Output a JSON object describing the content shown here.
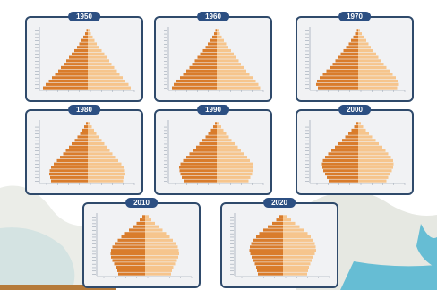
{
  "chart_data": [
    {
      "type": "population-pyramid",
      "year": "1950",
      "male_color": "#d97c2b",
      "female_color": "#f6c58d",
      "series": [
        {
          "name": "",
          "side": "left",
          "values": [
            10.0,
            9.4,
            8.7,
            8.0,
            7.3,
            6.6,
            6.0,
            5.4,
            4.8,
            4.2,
            3.6,
            3.0,
            2.4,
            1.9,
            1.4,
            1.0,
            0.6,
            0.3
          ]
        },
        {
          "name": "",
          "side": "right",
          "values": [
            9.6,
            9.1,
            8.4,
            7.8,
            7.1,
            6.5,
            5.9,
            5.3,
            4.8,
            4.2,
            3.7,
            3.1,
            2.5,
            2.0,
            1.5,
            1.1,
            0.7,
            0.4
          ]
        }
      ]
    },
    {
      "type": "population-pyramid",
      "year": "1960",
      "male_color": "#d97c2b",
      "female_color": "#f6c58d",
      "series": [
        {
          "name": "",
          "side": "left",
          "values": [
            10.0,
            9.6,
            9.0,
            8.2,
            7.5,
            6.8,
            6.1,
            5.5,
            4.9,
            4.3,
            3.7,
            3.1,
            2.5,
            2.0,
            1.5,
            1.0,
            0.6,
            0.3
          ]
        },
        {
          "name": "",
          "side": "right",
          "values": [
            9.7,
            9.3,
            8.7,
            8.0,
            7.3,
            6.6,
            6.0,
            5.4,
            4.9,
            4.3,
            3.8,
            3.2,
            2.6,
            2.1,
            1.6,
            1.1,
            0.7,
            0.4
          ]
        }
      ]
    },
    {
      "type": "population-pyramid",
      "year": "1970",
      "male_color": "#d97c2b",
      "female_color": "#f6c58d",
      "series": [
        {
          "name": "",
          "side": "left",
          "values": [
            9.0,
            9.4,
            9.2,
            8.6,
            7.9,
            7.1,
            6.4,
            5.7,
            5.1,
            4.5,
            3.9,
            3.3,
            2.7,
            2.1,
            1.6,
            1.1,
            0.7,
            0.3
          ]
        },
        {
          "name": "",
          "side": "right",
          "values": [
            8.7,
            9.1,
            9.0,
            8.4,
            7.7,
            7.0,
            6.3,
            5.7,
            5.1,
            4.5,
            4.0,
            3.4,
            2.8,
            2.3,
            1.8,
            1.2,
            0.8,
            0.4
          ]
        }
      ]
    },
    {
      "type": "population-pyramid",
      "year": "1980",
      "male_color": "#d97c2b",
      "female_color": "#f6c58d",
      "series": [
        {
          "name": "",
          "side": "left",
          "values": [
            8.2,
            8.4,
            8.6,
            8.5,
            8.2,
            7.6,
            6.9,
            6.2,
            5.5,
            4.9,
            4.2,
            3.6,
            2.9,
            2.3,
            1.7,
            1.2,
            0.8,
            0.4
          ]
        },
        {
          "name": "",
          "side": "right",
          "values": [
            7.9,
            8.1,
            8.4,
            8.3,
            8.0,
            7.5,
            6.8,
            6.1,
            5.5,
            4.9,
            4.3,
            3.7,
            3.1,
            2.5,
            1.9,
            1.4,
            0.9,
            0.5
          ]
        }
      ]
    },
    {
      "type": "population-pyramid",
      "year": "1990",
      "male_color": "#d97c2b",
      "female_color": "#f6c58d",
      "series": [
        {
          "name": "",
          "side": "left",
          "values": [
            7.4,
            7.8,
            8.1,
            8.3,
            8.4,
            8.1,
            7.5,
            6.8,
            6.1,
            5.3,
            4.6,
            3.9,
            3.2,
            2.5,
            1.9,
            1.3,
            0.8,
            0.4
          ]
        },
        {
          "name": "",
          "side": "right",
          "values": [
            7.1,
            7.5,
            7.9,
            8.1,
            8.2,
            8.0,
            7.4,
            6.8,
            6.1,
            5.4,
            4.7,
            4.0,
            3.3,
            2.7,
            2.1,
            1.5,
            1.0,
            0.5
          ]
        }
      ]
    },
    {
      "type": "population-pyramid",
      "year": "2000",
      "male_color": "#d97c2b",
      "female_color": "#f6c58d",
      "series": [
        {
          "name": "",
          "side": "left",
          "values": [
            6.6,
            7.0,
            7.4,
            7.8,
            8.0,
            8.1,
            7.9,
            7.4,
            6.7,
            6.0,
            5.2,
            4.4,
            3.6,
            2.9,
            2.2,
            1.5,
            0.9,
            0.5
          ]
        },
        {
          "name": "",
          "side": "right",
          "values": [
            6.3,
            6.7,
            7.1,
            7.5,
            7.8,
            7.9,
            7.8,
            7.3,
            6.7,
            6.1,
            5.4,
            4.6,
            3.9,
            3.1,
            2.4,
            1.7,
            1.1,
            0.6
          ]
        }
      ]
    },
    {
      "type": "population-pyramid",
      "year": "2010",
      "male_color": "#d97c2b",
      "female_color": "#f6c58d",
      "series": [
        {
          "name": "",
          "side": "left",
          "values": [
            6.0,
            6.2,
            6.5,
            6.9,
            7.3,
            7.6,
            7.7,
            7.6,
            7.3,
            6.8,
            6.1,
            5.3,
            4.5,
            3.6,
            2.8,
            1.9,
            1.2,
            0.6
          ]
        },
        {
          "name": "",
          "side": "right",
          "values": [
            5.8,
            6.0,
            6.3,
            6.7,
            7.1,
            7.4,
            7.6,
            7.5,
            7.3,
            6.9,
            6.2,
            5.5,
            4.7,
            3.9,
            3.0,
            2.2,
            1.4,
            0.8
          ]
        }
      ]
    },
    {
      "type": "population-pyramid",
      "year": "2020",
      "male_color": "#d97c2b",
      "female_color": "#f6c58d",
      "series": [
        {
          "name": "",
          "side": "left",
          "values": [
            5.6,
            5.8,
            6.0,
            6.3,
            6.6,
            7.0,
            7.3,
            7.5,
            7.4,
            7.1,
            6.6,
            6.0,
            5.3,
            4.4,
            3.4,
            2.4,
            1.5,
            0.8
          ]
        },
        {
          "name": "",
          "side": "right",
          "values": [
            5.4,
            5.6,
            5.8,
            6.1,
            6.4,
            6.8,
            7.1,
            7.4,
            7.3,
            7.1,
            6.7,
            6.2,
            5.5,
            4.7,
            3.7,
            2.7,
            1.8,
            1.0
          ]
        }
      ]
    }
  ]
}
